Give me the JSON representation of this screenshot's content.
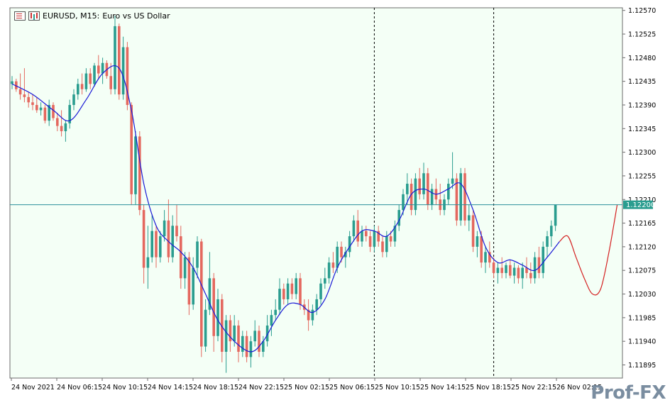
{
  "header": {
    "symbol_text": "EURUSD, M15:",
    "description_text": "Euro vs US Dollar"
  },
  "watermark": "Prof-FX",
  "colors": {
    "background": "#f4fff6",
    "bull": "#2a9d8f",
    "bear": "#e4685f",
    "ma_line": "#1a1ad6",
    "projection_line": "#d42020",
    "price_line": "#2a8f9a",
    "price_label_bg": "#2a9d8f"
  },
  "chart_data": {
    "type": "candlestick",
    "symbol": "EURUSD",
    "timeframe": "M15",
    "y_ticks": [
      1.1257,
      1.12525,
      1.1248,
      1.12435,
      1.1239,
      1.12345,
      1.123,
      1.12255,
      1.1221,
      1.12165,
      1.1212,
      1.12075,
      1.1203,
      1.11985,
      1.1194,
      1.11895
    ],
    "y_tick_labels": [
      "1.12570",
      "1.12525",
      "1.12480",
      "1.12435",
      "1.12390",
      "1.12345",
      "1.12300",
      "1.12255",
      "1.12210",
      "1.12165",
      "1.12120",
      "1.12075",
      "1.12030",
      "1.11985",
      "1.11940",
      "1.11895"
    ],
    "ylim": [
      1.1187,
      1.12575
    ],
    "x_labels": [
      "24 Nov 2021",
      "24 Nov 06:15",
      "24 Nov 10:15",
      "24 Nov 14:15",
      "24 Nov 18:15",
      "24 Nov 22:15",
      "25 Nov 02:15",
      "25 Nov 06:15",
      "25 Nov 10:15",
      "25 Nov 14:15",
      "25 Nov 18:15",
      "25 Nov 22:15",
      "26 Nov 02:15"
    ],
    "current_price": 1.122,
    "current_price_label": "1.12200",
    "day_separators": [
      88,
      117
    ],
    "total_bars": 135,
    "candles": [
      [
        0,
        1.1243,
        1.12445,
        1.1242,
        1.12435
      ],
      [
        1,
        1.12435,
        1.1244,
        1.12415,
        1.1242
      ],
      [
        2,
        1.1242,
        1.1245,
        1.124,
        1.1241
      ],
      [
        3,
        1.1241,
        1.1246,
        1.12395,
        1.12405
      ],
      [
        4,
        1.12405,
        1.12415,
        1.12385,
        1.12395
      ],
      [
        5,
        1.12395,
        1.1241,
        1.1238,
        1.1239
      ],
      [
        6,
        1.1239,
        1.12405,
        1.12375,
        1.1238
      ],
      [
        7,
        1.1238,
        1.12395,
        1.1237,
        1.12385
      ],
      [
        8,
        1.12385,
        1.1239,
        1.12355,
        1.1236
      ],
      [
        9,
        1.1236,
        1.124,
        1.1235,
        1.1239
      ],
      [
        10,
        1.1239,
        1.12395,
        1.1236,
        1.12365
      ],
      [
        11,
        1.12365,
        1.12375,
        1.1234,
        1.1235
      ],
      [
        12,
        1.1235,
        1.1238,
        1.1233,
        1.1234
      ],
      [
        13,
        1.1234,
        1.1236,
        1.1232,
        1.12355
      ],
      [
        14,
        1.12355,
        1.124,
        1.12345,
        1.1239
      ],
      [
        15,
        1.1239,
        1.1242,
        1.1238,
        1.1241
      ],
      [
        16,
        1.1241,
        1.1244,
        1.124,
        1.1243
      ],
      [
        17,
        1.1243,
        1.1245,
        1.1241,
        1.1242
      ],
      [
        18,
        1.1242,
        1.1246,
        1.12415,
        1.1245
      ],
      [
        19,
        1.1245,
        1.1246,
        1.1242,
        1.1243
      ],
      [
        20,
        1.1243,
        1.1247,
        1.12425,
        1.12465
      ],
      [
        21,
        1.12465,
        1.12485,
        1.1244,
        1.1245
      ],
      [
        22,
        1.1245,
        1.1248,
        1.1243,
        1.1247
      ],
      [
        23,
        1.1247,
        1.12475,
        1.1244,
        1.12445
      ],
      [
        24,
        1.12445,
        1.1247,
        1.1241,
        1.1242
      ],
      [
        25,
        1.1242,
        1.1256,
        1.1241,
        1.1254
      ],
      [
        26,
        1.1254,
        1.12545,
        1.124,
        1.1241
      ],
      [
        27,
        1.1241,
        1.1252,
        1.124,
        1.125
      ],
      [
        28,
        1.125,
        1.1251,
        1.1238,
        1.1239
      ],
      [
        29,
        1.1239,
        1.12395,
        1.122,
        1.1222
      ],
      [
        30,
        1.1222,
        1.1234,
        1.122,
        1.1233
      ],
      [
        31,
        1.1233,
        1.1234,
        1.1218,
        1.1219
      ],
      [
        32,
        1.1219,
        1.122,
        1.1205,
        1.1208
      ],
      [
        33,
        1.1208,
        1.1216,
        1.1204,
        1.121
      ],
      [
        34,
        1.121,
        1.1218,
        1.1209,
        1.1215
      ],
      [
        35,
        1.1215,
        1.1216,
        1.1208,
        1.121
      ],
      [
        36,
        1.121,
        1.1215,
        1.1209,
        1.1214
      ],
      [
        37,
        1.1214,
        1.1219,
        1.1213,
        1.1217
      ],
      [
        38,
        1.1217,
        1.1221,
        1.1209,
        1.121
      ],
      [
        39,
        1.121,
        1.1218,
        1.1209,
        1.1216
      ],
      [
        40,
        1.1216,
        1.122,
        1.1213,
        1.1214
      ],
      [
        41,
        1.1214,
        1.1216,
        1.1204,
        1.1206
      ],
      [
        42,
        1.1206,
        1.1211,
        1.1204,
        1.121
      ],
      [
        43,
        1.121,
        1.1211,
        1.1199,
        1.1201
      ],
      [
        44,
        1.1201,
        1.121,
        1.12,
        1.1208
      ],
      [
        45,
        1.1208,
        1.1214,
        1.1206,
        1.1213
      ],
      [
        46,
        1.1213,
        1.12135,
        1.1191,
        1.1193
      ],
      [
        47,
        1.1193,
        1.1202,
        1.1192,
        1.12
      ],
      [
        48,
        1.12,
        1.1211,
        1.1199,
        1.1206
      ],
      [
        49,
        1.1206,
        1.1207,
        1.1192,
        1.1195
      ],
      [
        50,
        1.1195,
        1.1204,
        1.1194,
        1.1202
      ],
      [
        51,
        1.1202,
        1.1203,
        1.119,
        1.1192
      ],
      [
        52,
        1.1192,
        1.1199,
        1.1188,
        1.1198
      ],
      [
        53,
        1.1198,
        1.1199,
        1.1192,
        1.1194
      ],
      [
        54,
        1.1194,
        1.1199,
        1.1193,
        1.1197
      ],
      [
        55,
        1.1197,
        1.1198,
        1.119,
        1.1192
      ],
      [
        56,
        1.1192,
        1.1196,
        1.1191,
        1.1195
      ],
      [
        57,
        1.1195,
        1.1196,
        1.119,
        1.1191
      ],
      [
        58,
        1.1191,
        1.1195,
        1.1189,
        1.1194
      ],
      [
        59,
        1.1194,
        1.1198,
        1.1193,
        1.1196
      ],
      [
        60,
        1.1196,
        1.1197,
        1.1191,
        1.1192
      ],
      [
        61,
        1.1192,
        1.1195,
        1.1191,
        1.1194
      ],
      [
        62,
        1.1194,
        1.1199,
        1.1193,
        1.1197
      ],
      [
        63,
        1.1197,
        1.12,
        1.1195,
        1.1199
      ],
      [
        64,
        1.1199,
        1.1202,
        1.1198,
        1.12
      ],
      [
        65,
        1.12,
        1.1206,
        1.1199,
        1.1204
      ],
      [
        66,
        1.1204,
        1.1205,
        1.1201,
        1.1202
      ],
      [
        67,
        1.1202,
        1.1206,
        1.1201,
        1.1205
      ],
      [
        68,
        1.1205,
        1.1206,
        1.1202,
        1.1203
      ],
      [
        69,
        1.1203,
        1.1207,
        1.1202,
        1.1206
      ],
      [
        70,
        1.1206,
        1.1207,
        1.12,
        1.1201
      ],
      [
        71,
        1.1201,
        1.1202,
        1.1199,
        1.12
      ],
      [
        72,
        1.12,
        1.1202,
        1.1196,
        1.1198
      ],
      [
        73,
        1.1198,
        1.1201,
        1.1197,
        1.12
      ],
      [
        74,
        1.12,
        1.1203,
        1.1199,
        1.1202
      ],
      [
        75,
        1.1202,
        1.1206,
        1.1201,
        1.1205
      ],
      [
        76,
        1.1205,
        1.1208,
        1.1204,
        1.1206
      ],
      [
        77,
        1.1206,
        1.121,
        1.1205,
        1.1209
      ],
      [
        78,
        1.1209,
        1.1211,
        1.1207,
        1.1208
      ],
      [
        79,
        1.1208,
        1.1213,
        1.1207,
        1.1212
      ],
      [
        80,
        1.1212,
        1.1213,
        1.1209,
        1.121
      ],
      [
        81,
        1.121,
        1.1212,
        1.1208,
        1.1211
      ],
      [
        82,
        1.1211,
        1.1215,
        1.121,
        1.1214
      ],
      [
        83,
        1.1214,
        1.1218,
        1.1213,
        1.1217
      ],
      [
        84,
        1.1217,
        1.1219,
        1.1212,
        1.1213
      ],
      [
        85,
        1.1213,
        1.1216,
        1.1212,
        1.1215
      ],
      [
        86,
        1.1215,
        1.1216,
        1.1213,
        1.1214
      ],
      [
        87,
        1.1214,
        1.1215,
        1.1211,
        1.1212
      ],
      [
        88,
        1.1212,
        1.1216,
        1.1211,
        1.1215
      ],
      [
        89,
        1.1215,
        1.1216,
        1.1212,
        1.1213
      ],
      [
        90,
        1.1213,
        1.1214,
        1.121,
        1.1211
      ],
      [
        91,
        1.1211,
        1.1215,
        1.121,
        1.1214
      ],
      [
        92,
        1.1214,
        1.1215,
        1.1212,
        1.1213
      ],
      [
        93,
        1.1213,
        1.1217,
        1.1212,
        1.1216
      ],
      [
        94,
        1.1216,
        1.122,
        1.1215,
        1.1219
      ],
      [
        95,
        1.1219,
        1.1223,
        1.1218,
        1.1222
      ],
      [
        96,
        1.1222,
        1.1226,
        1.122,
        1.1224
      ],
      [
        97,
        1.1224,
        1.1225,
        1.1218,
        1.1219
      ],
      [
        98,
        1.1219,
        1.1226,
        1.1218,
        1.1225
      ],
      [
        99,
        1.1225,
        1.1227,
        1.1221,
        1.1222
      ],
      [
        100,
        1.1222,
        1.1228,
        1.1221,
        1.1226
      ],
      [
        101,
        1.1226,
        1.1227,
        1.1219,
        1.122
      ],
      [
        102,
        1.122,
        1.1224,
        1.1219,
        1.1223
      ],
      [
        103,
        1.1223,
        1.1225,
        1.122,
        1.1221
      ],
      [
        104,
        1.1221,
        1.1224,
        1.1218,
        1.1219
      ],
      [
        105,
        1.1219,
        1.1222,
        1.1218,
        1.1221
      ],
      [
        106,
        1.1221,
        1.1225,
        1.122,
        1.1224
      ],
      [
        107,
        1.1224,
        1.123,
        1.1223,
        1.1225
      ],
      [
        108,
        1.1225,
        1.1226,
        1.1216,
        1.1217
      ],
      [
        109,
        1.1217,
        1.1227,
        1.1216,
        1.1226
      ],
      [
        110,
        1.1226,
        1.1227,
        1.1216,
        1.1217
      ],
      [
        111,
        1.1217,
        1.122,
        1.1215,
        1.1218
      ],
      [
        112,
        1.1218,
        1.1219,
        1.1211,
        1.1212
      ],
      [
        113,
        1.1212,
        1.1215,
        1.121,
        1.1214
      ],
      [
        114,
        1.1214,
        1.1215,
        1.1208,
        1.1209
      ],
      [
        115,
        1.1209,
        1.1212,
        1.1207,
        1.1211
      ],
      [
        116,
        1.1211,
        1.1213,
        1.1208,
        1.1209
      ],
      [
        117,
        1.1209,
        1.121,
        1.1206,
        1.1207
      ],
      [
        118,
        1.1207,
        1.1209,
        1.1205,
        1.1208
      ],
      [
        119,
        1.1208,
        1.121,
        1.1206,
        1.1207
      ],
      [
        120,
        1.1207,
        1.1209,
        1.1206,
        1.12085
      ],
      [
        121,
        1.12085,
        1.12095,
        1.1206,
        1.12065
      ],
      [
        122,
        1.12065,
        1.1209,
        1.1205,
        1.1208
      ],
      [
        123,
        1.1208,
        1.12085,
        1.1205,
        1.1206
      ],
      [
        124,
        1.1206,
        1.1209,
        1.1204,
        1.1208
      ],
      [
        125,
        1.1208,
        1.121,
        1.1206,
        1.1207
      ],
      [
        126,
        1.1207,
        1.1209,
        1.1205,
        1.1206
      ],
      [
        127,
        1.1206,
        1.1211,
        1.1205,
        1.121
      ],
      [
        128,
        1.121,
        1.1212,
        1.1206,
        1.1207
      ],
      [
        129,
        1.1207,
        1.1213,
        1.1206,
        1.1212
      ],
      [
        130,
        1.1212,
        1.1215,
        1.121,
        1.1214
      ],
      [
        131,
        1.1214,
        1.1217,
        1.1212,
        1.1216
      ],
      [
        132,
        1.1216,
        1.122,
        1.1215,
        1.122
      ]
    ],
    "ma": [
      [
        0,
        1.1243
      ],
      [
        5,
        1.1241
      ],
      [
        10,
        1.1238
      ],
      [
        14,
        1.1236
      ],
      [
        18,
        1.124
      ],
      [
        22,
        1.1245
      ],
      [
        26,
        1.1246
      ],
      [
        29,
        1.1238
      ],
      [
        32,
        1.1224
      ],
      [
        35,
        1.1216
      ],
      [
        38,
        1.1213
      ],
      [
        41,
        1.1211
      ],
      [
        44,
        1.1208
      ],
      [
        47,
        1.1203
      ],
      [
        50,
        1.1198
      ],
      [
        54,
        1.1194
      ],
      [
        58,
        1.1192
      ],
      [
        61,
        1.1194
      ],
      [
        64,
        1.1198
      ],
      [
        67,
        1.1201
      ],
      [
        70,
        1.1201
      ],
      [
        73,
        1.11995
      ],
      [
        76,
        1.1202
      ],
      [
        79,
        1.1208
      ],
      [
        82,
        1.1212
      ],
      [
        85,
        1.1215
      ],
      [
        88,
        1.1215
      ],
      [
        91,
        1.1214
      ],
      [
        94,
        1.1217
      ],
      [
        97,
        1.1222
      ],
      [
        100,
        1.1223
      ],
      [
        103,
        1.1222
      ],
      [
        106,
        1.1223
      ],
      [
        109,
        1.1224
      ],
      [
        112,
        1.1219
      ],
      [
        115,
        1.1212
      ],
      [
        118,
        1.1209
      ],
      [
        121,
        1.12095
      ],
      [
        124,
        1.12085
      ],
      [
        127,
        1.12075
      ],
      [
        130,
        1.121
      ],
      [
        133,
        1.1213
      ]
    ],
    "projection": [
      [
        133,
        1.1213
      ],
      [
        135,
        1.1214
      ],
      [
        137,
        1.121
      ],
      [
        139,
        1.1206
      ],
      [
        141,
        1.1203
      ],
      [
        143,
        1.1204
      ],
      [
        145,
        1.1211
      ],
      [
        147,
        1.122
      ]
    ]
  }
}
